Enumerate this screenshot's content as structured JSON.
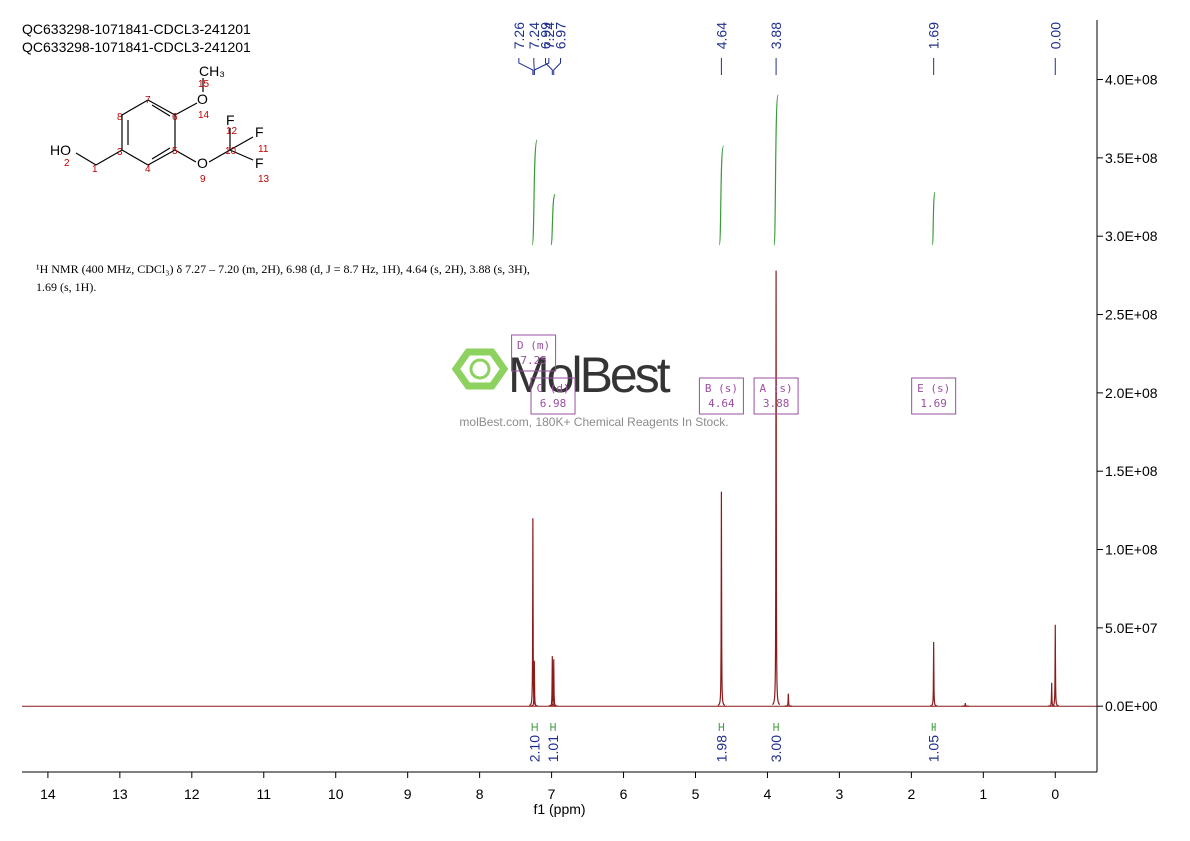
{
  "header": {
    "titles": [
      "QC633298-1071841-CDCL3-241201",
      "QC633298-1071841-CDCL3-241201"
    ]
  },
  "structure": {
    "atoms": [
      "HO",
      "O",
      "CH₃",
      "O",
      "F",
      "F",
      "F"
    ],
    "numbers": [
      "2",
      "1",
      "3",
      "8",
      "7",
      "6",
      "5",
      "4",
      "14",
      "15",
      "9",
      "10",
      "12",
      "11",
      "13"
    ]
  },
  "description": [
    "¹H NMR (400 MHz, CDCl₃) δ 7.27 – 7.20 (m, 2H), 6.98 (d, J = 8.7 Hz, 1H), 4.64 (s, 2H), 3.88 (s, 3H),",
    "1.69 (s, 1H)."
  ],
  "watermark": {
    "brand": "MolBest",
    "tagline": "molBest.com, 180K+ Chemical Reagents In Stock."
  },
  "chart_data": {
    "type": "nmr",
    "x_label": "f1 (ppm)",
    "xlim": [
      14.36,
      -0.58
    ],
    "xticks": [
      14,
      13,
      12,
      11,
      10,
      9,
      8,
      7,
      6,
      5,
      4,
      3,
      2,
      1,
      0
    ],
    "ylim": [
      -42000000,
      438000000
    ],
    "yticks": [
      {
        "value": 0,
        "label": "0.0E+00"
      },
      {
        "value": 50000000,
        "label": "5.0E+07"
      },
      {
        "value": 100000000,
        "label": "1.0E+08"
      },
      {
        "value": 150000000,
        "label": "1.5E+08"
      },
      {
        "value": 200000000,
        "label": "2.0E+08"
      },
      {
        "value": 250000000,
        "label": "2.5E+08"
      },
      {
        "value": 300000000,
        "label": "3.0E+08"
      },
      {
        "value": 350000000,
        "label": "3.5E+08"
      },
      {
        "value": 400000000,
        "label": "4.0E+08"
      }
    ],
    "color": "#8b1a1a",
    "peaks": {
      "x": [
        7.26,
        7.24,
        6.99,
        6.97,
        4.64,
        3.88,
        3.71,
        1.69,
        1.25,
        0.05,
        0.0
      ],
      "values": [
        120000000,
        29000000,
        32000000,
        30000000,
        137000000,
        278000000,
        8000000,
        41000000,
        2000000,
        15000000,
        52000000
      ]
    },
    "peak_labels": [
      {
        "value": 7.26,
        "label": "7.26"
      },
      {
        "value": 7.24,
        "label": "7.24"
      },
      {
        "value": 7.24,
        "label": "7.24"
      },
      {
        "value": 6.99,
        "label": "6.99"
      },
      {
        "value": 6.97,
        "label": "6.97"
      },
      {
        "value": 4.64,
        "label": "4.64"
      },
      {
        "value": 3.88,
        "label": "3.88"
      },
      {
        "value": 1.69,
        "label": "1.69"
      },
      {
        "value": 0.0,
        "label": "0.00"
      }
    ],
    "integral_color": "#3a9a3a",
    "integrals": [
      {
        "from": 7.27,
        "to": 7.2,
        "value": 2.1,
        "label": "2.10"
      },
      {
        "from": 7.01,
        "to": 6.95,
        "value": 1.01,
        "label": "1.01"
      },
      {
        "from": 4.67,
        "to": 4.61,
        "value": 1.98,
        "label": "1.98"
      },
      {
        "from": 3.91,
        "to": 3.85,
        "value": 3.0,
        "label": "3.00"
      },
      {
        "from": 1.71,
        "to": 1.67,
        "value": 1.05,
        "label": "1.05"
      }
    ],
    "multiplets": [
      {
        "name": "D (m)",
        "shift": 7.25,
        "value_label": "7.25"
      },
      {
        "name": "C (d)",
        "shift": 6.98,
        "value_label": "6.98"
      },
      {
        "name": "B (s)",
        "shift": 4.64,
        "value_label": "4.64"
      },
      {
        "name": "A (s)",
        "shift": 3.88,
        "value_label": "3.88"
      },
      {
        "name": "E (s)",
        "shift": 1.69,
        "value_label": "1.69"
      }
    ]
  }
}
